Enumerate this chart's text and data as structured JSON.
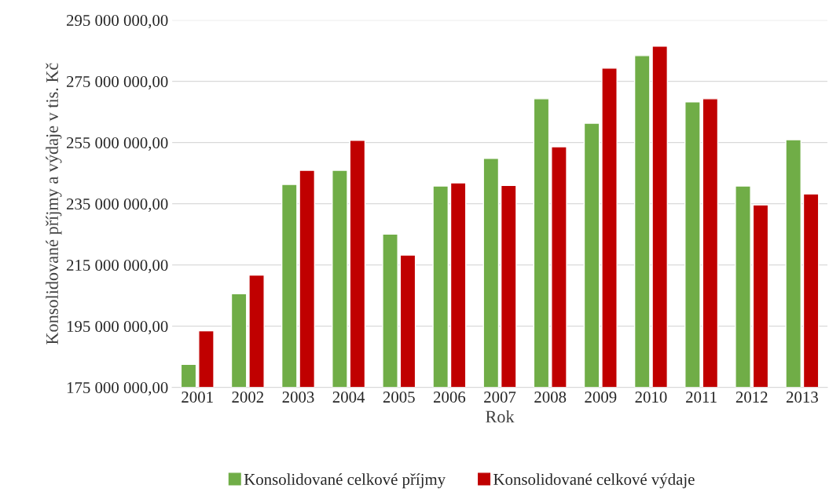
{
  "chart_data": {
    "type": "bar",
    "xlabel": "Rok",
    "ylabel": "Konsolidované příjmy a výdaje v tis. Kč",
    "categories": [
      "2001",
      "2002",
      "2003",
      "2004",
      "2005",
      "2006",
      "2007",
      "2008",
      "2009",
      "2010",
      "2011",
      "2012",
      "2013"
    ],
    "series": [
      {
        "name": "Konsolidované celkové příjmy",
        "color": "#70ad47",
        "values": [
          182500000,
          205600000,
          241300000,
          245900000,
          225100000,
          240800000,
          249800000,
          269300000,
          261300000,
          283400000,
          268300000,
          240800000,
          255900000
        ]
      },
      {
        "name": "Konsolidované celkové výdaje",
        "color": "#c00000",
        "values": [
          193500000,
          211700000,
          245900000,
          255700000,
          218200000,
          241800000,
          241000000,
          253600000,
          279300000,
          286500000,
          269300000,
          234600000,
          238200000
        ]
      }
    ],
    "ylim": [
      175000000,
      295000000
    ],
    "yticks": [
      {
        "value": 175000000,
        "label": "175 000 000,00"
      },
      {
        "value": 195000000,
        "label": "195 000 000,00"
      },
      {
        "value": 215000000,
        "label": "215 000 000,00"
      },
      {
        "value": 235000000,
        "label": "235 000 000,00"
      },
      {
        "value": 255000000,
        "label": "255 000 000,00"
      },
      {
        "value": 275000000,
        "label": "275 000 000,00"
      },
      {
        "value": 295000000,
        "label": "295 000 000,00"
      }
    ],
    "grid": "y",
    "legend": "bottom"
  }
}
